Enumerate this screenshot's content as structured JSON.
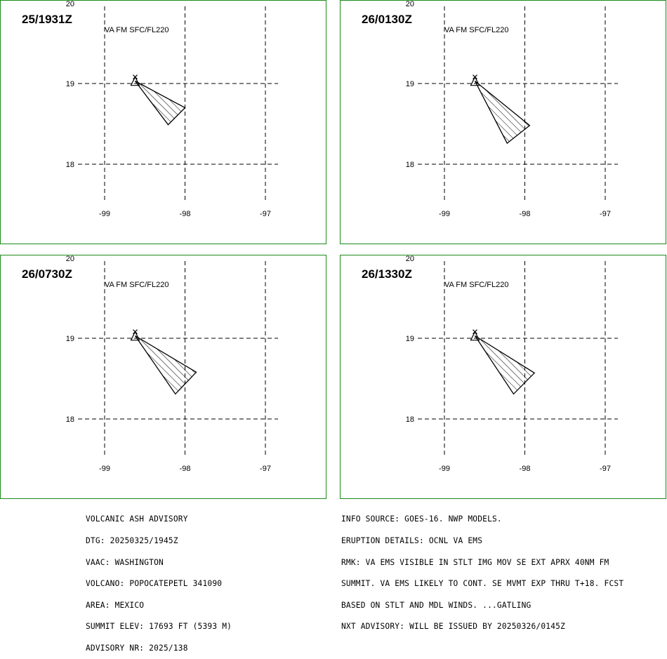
{
  "colors": {
    "border": "#1a8a1a",
    "line": "#000000",
    "background": "#ffffff"
  },
  "map": {
    "lat_ticks": [
      "20",
      "19",
      "18"
    ],
    "lon_ticks": [
      "-99",
      "-98",
      "-97"
    ],
    "lat_range": [
      17.3,
      20.0
    ],
    "lon_range": [
      -99.0,
      -97.0
    ],
    "volcano_marker": "triangle-icon",
    "volcano_position": {
      "lat": 19.02,
      "lon": -98.62
    }
  },
  "panels": [
    {
      "time": "25/1931Z",
      "level": "VA FM SFC/FL220",
      "ash_polygon": [
        [
          -98.62,
          19.03
        ],
        [
          -98.0,
          18.7
        ],
        [
          -98.21,
          18.49
        ],
        [
          -98.62,
          19.03
        ]
      ]
    },
    {
      "time": "26/0130Z",
      "level": "VA FM SFC/FL220",
      "ash_polygon": [
        [
          -98.62,
          19.03
        ],
        [
          -97.94,
          18.48
        ],
        [
          -98.22,
          18.26
        ],
        [
          -98.62,
          19.03
        ]
      ]
    },
    {
      "time": "26/0730Z",
      "level": "VA FM SFC/FL220",
      "ash_polygon": [
        [
          -98.62,
          19.03
        ],
        [
          -97.86,
          18.58
        ],
        [
          -98.12,
          18.31
        ],
        [
          -98.62,
          19.03
        ]
      ]
    },
    {
      "time": "26/1330Z",
      "level": "VA FM SFC/FL220",
      "ash_polygon": [
        [
          -98.62,
          19.03
        ],
        [
          -97.88,
          18.57
        ],
        [
          -98.14,
          18.31
        ],
        [
          -98.62,
          19.03
        ]
      ]
    }
  ],
  "footer_left": [
    "VOLCANIC ASH ADVISORY",
    "DTG: 20250325/1945Z",
    "VAAC: WASHINGTON",
    "VOLCANO: POPOCATEPETL 341090",
    "AREA: MEXICO",
    "SUMMIT ELEV: 17693 FT (5393 M)",
    "ADVISORY NR: 2025/138"
  ],
  "footer_right": [
    "INFO SOURCE: GOES-16. NWP MODELS.",
    "ERUPTION DETAILS: OCNL VA EMS",
    "RMK: VA EMS VISIBLE IN STLT IMG MOV SE EXT APRX 40NM FM",
    "SUMMIT. VA EMS LIKELY TO CONT. SE MVMT EXP THRU T+18. FCST",
    "BASED ON STLT AND MDL WINDS. ...GATLING",
    "NXT ADVISORY: WILL BE ISSUED BY 20250326/0145Z"
  ]
}
